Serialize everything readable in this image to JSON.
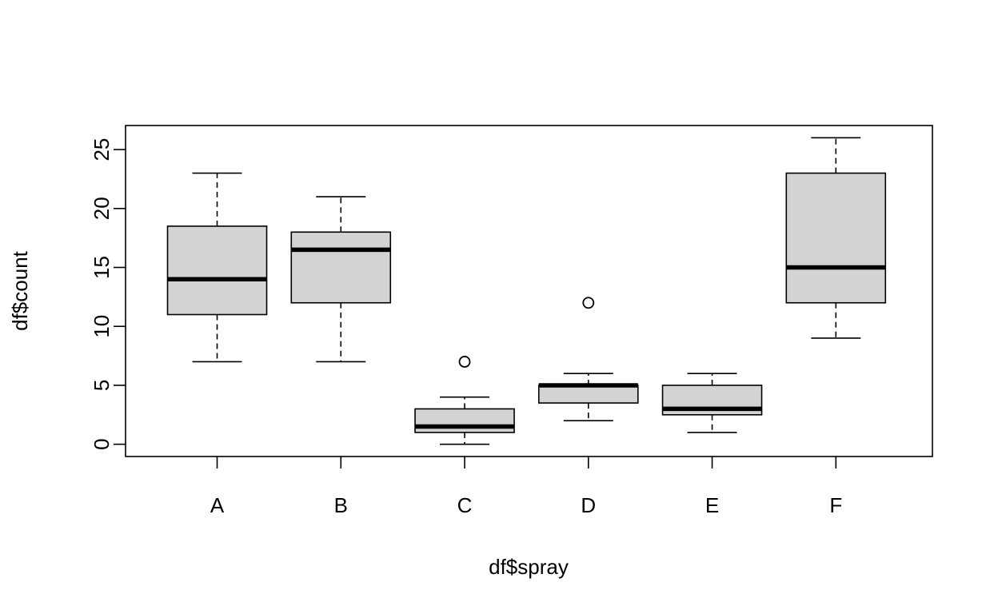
{
  "chart_data": {
    "type": "boxplot",
    "xlabel": "df$spray",
    "ylabel": "df$count",
    "categories": [
      "A",
      "B",
      "C",
      "D",
      "E",
      "F"
    ],
    "boxes": [
      {
        "category": "A",
        "whisker_low": 7,
        "q1": 11,
        "median": 14,
        "q3": 18.5,
        "whisker_high": 23,
        "outliers": []
      },
      {
        "category": "B",
        "whisker_low": 7,
        "q1": 12,
        "median": 16.5,
        "q3": 18,
        "whisker_high": 21,
        "outliers": []
      },
      {
        "category": "C",
        "whisker_low": 0,
        "q1": 1,
        "median": 1.5,
        "q3": 3,
        "whisker_high": 4,
        "outliers": [
          7
        ]
      },
      {
        "category": "D",
        "whisker_low": 2,
        "q1": 3.5,
        "median": 5,
        "q3": 5,
        "whisker_high": 6,
        "outliers": [
          12
        ]
      },
      {
        "category": "E",
        "whisker_low": 1,
        "q1": 2.5,
        "median": 3,
        "q3": 5,
        "whisker_high": 6,
        "outliers": []
      },
      {
        "category": "F",
        "whisker_low": 9,
        "q1": 12,
        "median": 15,
        "q3": 23,
        "whisker_high": 26,
        "outliers": []
      }
    ],
    "yticks": [
      0,
      5,
      10,
      15,
      20,
      25
    ],
    "ylim": [
      -1.04,
      27.04
    ],
    "box_fill": "#d3d3d3",
    "line_color": "#000000"
  }
}
